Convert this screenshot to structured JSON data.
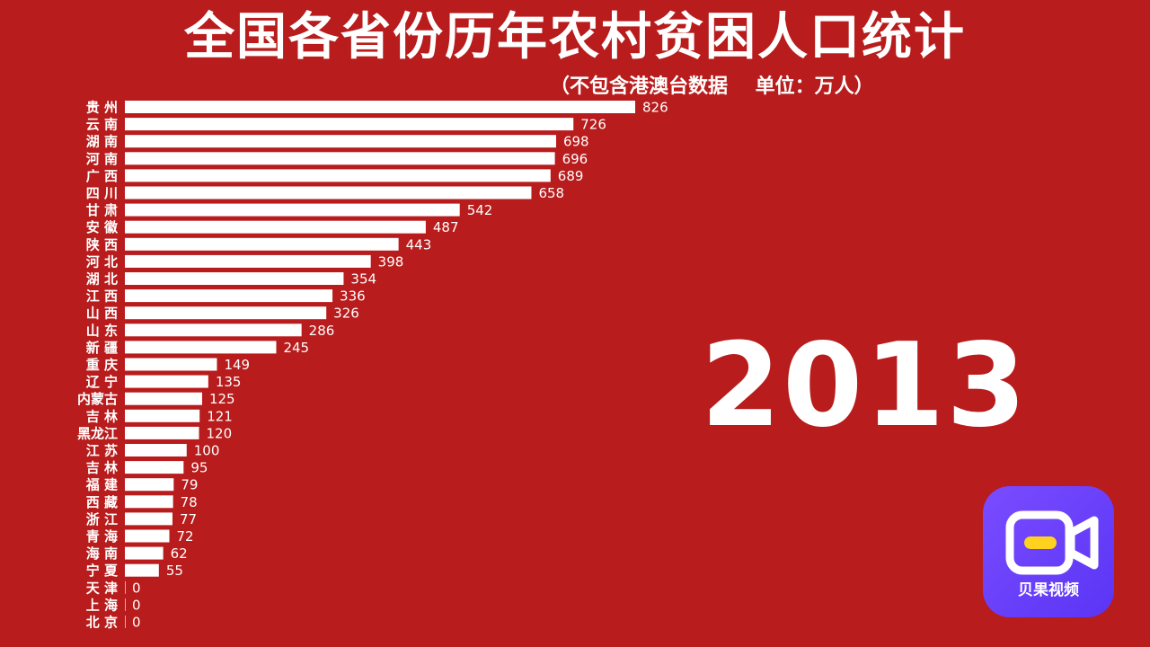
{
  "title": "全国各省份历年农村贫困人口统计",
  "subtitle": "（不包含港澳台数据    单位：万人）",
  "year": "2013",
  "logo": {
    "text": "贝果视频",
    "icon": "video-camera-icon",
    "color": "#6a40ff"
  },
  "colors": {
    "background": "#b81c1c",
    "bar": "#ffffff",
    "text": "#ffffff"
  },
  "chart_data": {
    "type": "bar",
    "orientation": "horizontal",
    "title": "全国各省份历年农村贫困人口统计",
    "unit": "万人",
    "categories": [
      "贵州",
      "云南",
      "湖南",
      "河南",
      "广西",
      "四川",
      "甘肃",
      "安徽",
      "陕西",
      "河北",
      "湖北",
      "江西",
      "山西",
      "山东",
      "新疆",
      "重庆",
      "辽宁",
      "内蒙古",
      "吉林",
      "黑龙江",
      "江苏",
      "吉林",
      "福建",
      "西藏",
      "浙江",
      "青海",
      "海南",
      "宁夏",
      "天津",
      "上海",
      "北京"
    ],
    "values": [
      826,
      726,
      698,
      696,
      689,
      658,
      542,
      487,
      443,
      398,
      354,
      336,
      326,
      286,
      245,
      149,
      135,
      125,
      121,
      120,
      100,
      95,
      79,
      78,
      77,
      72,
      62,
      55,
      0,
      0,
      0
    ],
    "display_labels": [
      "贵 州",
      "云 南",
      "湖 南",
      "河 南",
      "广 西",
      "四 川",
      "甘 肃",
      "安 徽",
      "陕 西",
      "河 北",
      "湖 北",
      "江 西",
      "山 西",
      "山 东",
      "新 疆",
      "重 庆",
      "辽 宁",
      "内蒙古",
      "吉 林",
      "黑龙江",
      "江 苏",
      "吉 林",
      "福 建",
      "西 藏",
      "浙 江",
      "青 海",
      "海 南",
      "宁 夏",
      "天 津",
      "上 海",
      "北 京"
    ],
    "value_labels": [
      "826",
      "726",
      "698",
      "696",
      "689",
      "658",
      "542",
      "487",
      "443",
      "398",
      "354",
      "336",
      "326",
      "286",
      "245",
      "149",
      "135",
      "125",
      "121",
      "120",
      "100",
      "95",
      "79",
      "78",
      "77",
      "72",
      "62",
      "55",
      "0",
      "0",
      "0"
    ],
    "xlim": [
      0,
      826
    ]
  }
}
